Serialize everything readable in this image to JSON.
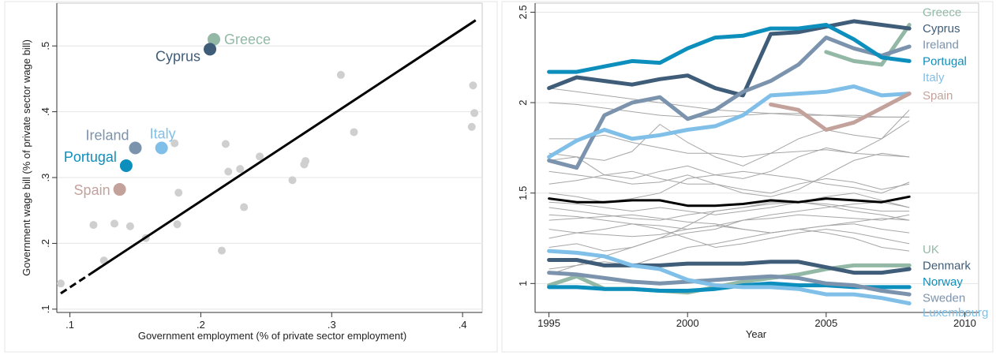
{
  "colors": {
    "grey_point": "#cfcfcf",
    "grey_line": "#a6a6a6",
    "black": "#000000",
    "greece": "#93b9a6",
    "cyprus": "#3f5d78",
    "ireland": "#7b93ad",
    "italy": "#7fbfe8",
    "portugal": "#0c8fbd",
    "spain": "#c4a29c",
    "uk": "#93b9a6",
    "denmark": "#3f5d78",
    "norway": "#0c8fbd",
    "sweden": "#7b93ad",
    "luxembourg": "#7fbfe8"
  },
  "chart_data": [
    {
      "type": "scatter",
      "xlabel": "Government employment (% of private sector employment)",
      "ylabel": "Government wage bill (% of private sector wage bill)",
      "xlim": [
        0.09,
        0.415
      ],
      "ylim": [
        0.095,
        0.565
      ],
      "xticks": [
        0.1,
        0.2,
        0.3,
        0.4
      ],
      "yticks": [
        0.1,
        0.2,
        0.3,
        0.4,
        0.5
      ],
      "xtick_labels": [
        ".1",
        ".2",
        ".3",
        ".4"
      ],
      "ytick_labels": [
        ".1",
        ".2",
        ".3",
        ".4",
        ".5"
      ],
      "grid": "horizontal",
      "background_points": [
        {
          "x": 0.093,
          "y": 0.139
        },
        {
          "x": 0.118,
          "y": 0.228
        },
        {
          "x": 0.126,
          "y": 0.174
        },
        {
          "x": 0.134,
          "y": 0.23
        },
        {
          "x": 0.146,
          "y": 0.226
        },
        {
          "x": 0.158,
          "y": 0.208
        },
        {
          "x": 0.18,
          "y": 0.352
        },
        {
          "x": 0.182,
          "y": 0.229
        },
        {
          "x": 0.183,
          "y": 0.277
        },
        {
          "x": 0.216,
          "y": 0.189
        },
        {
          "x": 0.219,
          "y": 0.351
        },
        {
          "x": 0.221,
          "y": 0.309
        },
        {
          "x": 0.23,
          "y": 0.313
        },
        {
          "x": 0.233,
          "y": 0.255
        },
        {
          "x": 0.245,
          "y": 0.332
        },
        {
          "x": 0.27,
          "y": 0.296
        },
        {
          "x": 0.279,
          "y": 0.32
        },
        {
          "x": 0.28,
          "y": 0.325
        },
        {
          "x": 0.307,
          "y": 0.456
        },
        {
          "x": 0.317,
          "y": 0.369
        },
        {
          "x": 0.407,
          "y": 0.377
        },
        {
          "x": 0.408,
          "y": 0.44
        },
        {
          "x": 0.409,
          "y": 0.398
        }
      ],
      "labeled_points": [
        {
          "name": "Greece",
          "x": 0.21,
          "y": 0.51,
          "color_key": "greece"
        },
        {
          "name": "Cyprus",
          "x": 0.207,
          "y": 0.495,
          "color_key": "cyprus"
        },
        {
          "name": "Ireland",
          "x": 0.15,
          "y": 0.345,
          "color_key": "ireland"
        },
        {
          "name": "Italy",
          "x": 0.17,
          "y": 0.345,
          "color_key": "italy"
        },
        {
          "name": "Portugal",
          "x": 0.143,
          "y": 0.318,
          "color_key": "portugal"
        },
        {
          "name": "Spain",
          "x": 0.138,
          "y": 0.282,
          "color_key": "spain"
        }
      ],
      "fit_line": {
        "x0": 0.093,
        "y0": 0.124,
        "x_solid_start": 0.116,
        "x1": 0.41,
        "y1": 0.539
      }
    },
    {
      "type": "line",
      "xlabel": "Year",
      "ylabel": "",
      "xlim": [
        1994.5,
        2010.5
      ],
      "ylim": [
        0.84,
        2.55
      ],
      "xticks": [
        1995,
        2000,
        2005,
        2010
      ],
      "xtick_labels": [
        "1995",
        "2000",
        "2005",
        "2010"
      ],
      "yticks": [
        1,
        1.5,
        2,
        2.5
      ],
      "ytick_labels": [
        "1",
        "1.5",
        "2",
        "2.5"
      ],
      "grid": "horizontal",
      "background_series": [
        [
          2.08,
          2.06,
          2.04,
          2.02,
          2.0,
          1.98,
          1.96,
          1.95,
          1.94,
          1.93,
          1.93,
          1.93,
          1.92,
          1.92
        ],
        [
          2.0,
          1.99,
          1.97,
          1.95,
          1.93,
          1.92,
          1.92,
          1.93,
          1.94,
          1.94,
          1.93,
          1.92,
          1.92,
          1.92
        ],
        [
          1.8,
          1.8,
          1.82,
          1.78,
          1.75,
          1.72,
          1.72,
          1.7,
          1.72,
          1.73,
          1.74,
          1.72,
          1.71,
          1.7
        ],
        [
          1.72,
          1.7,
          1.68,
          1.73,
          1.88,
          1.78,
          1.7,
          1.65,
          1.72,
          1.8,
          1.85,
          1.82,
          1.8,
          1.96
        ],
        [
          1.68,
          1.7,
          1.6,
          1.58,
          1.62,
          1.65,
          1.6,
          1.58,
          1.62,
          1.7,
          1.75,
          1.72,
          1.8,
          1.9
        ],
        [
          1.62,
          1.6,
          1.58,
          1.55,
          1.56,
          1.6,
          1.55,
          1.5,
          1.48,
          1.52,
          1.6,
          1.68,
          1.72,
          1.7
        ],
        [
          1.55,
          1.57,
          1.6,
          1.62,
          1.58,
          1.55,
          1.55,
          1.52,
          1.5,
          1.55,
          1.58,
          1.56,
          1.52,
          1.55
        ],
        [
          1.5,
          1.48,
          1.45,
          1.47,
          1.5,
          1.58,
          1.6,
          1.62,
          1.6,
          1.58,
          1.55,
          1.53,
          1.5,
          1.56
        ],
        [
          1.45,
          1.44,
          1.42,
          1.4,
          1.42,
          1.4,
          1.38,
          1.4,
          1.42,
          1.45,
          1.48,
          1.5,
          1.46,
          1.42
        ],
        [
          1.42,
          1.4,
          1.38,
          1.36,
          1.35,
          1.38,
          1.4,
          1.42,
          1.44,
          1.45,
          1.44,
          1.42,
          1.4,
          1.4
        ],
        [
          1.38,
          1.37,
          1.35,
          1.33,
          1.32,
          1.3,
          1.32,
          1.35,
          1.36,
          1.38,
          1.37,
          1.36,
          1.35,
          1.38
        ],
        [
          1.35,
          1.36,
          1.37,
          1.38,
          1.36,
          1.34,
          1.33,
          1.3,
          1.28,
          1.3,
          1.32,
          1.34,
          1.36,
          1.35
        ],
        [
          1.3,
          1.28,
          1.27,
          1.26,
          1.27,
          1.3,
          1.32,
          1.3,
          1.28,
          1.3,
          1.32,
          1.33,
          1.3,
          1.28
        ],
        [
          1.25,
          1.28,
          1.3,
          1.33,
          1.3,
          1.25,
          1.2,
          1.22,
          1.25,
          1.28,
          1.3,
          1.28,
          1.25,
          1.22
        ],
        [
          1.2,
          1.22,
          1.18,
          1.2,
          1.25,
          1.32,
          1.4,
          1.42,
          1.45,
          1.45,
          1.43,
          1.4,
          1.38,
          1.35
        ],
        [
          1.05,
          1.1,
          1.15,
          1.2,
          1.25,
          1.28,
          1.3,
          1.35,
          1.38,
          1.4,
          1.42,
          1.44,
          1.45,
          1.42
        ],
        [
          1.08,
          1.1,
          1.12,
          1.1,
          1.15,
          1.2,
          1.22,
          1.25,
          1.28,
          1.3,
          1.28,
          1.25,
          1.2,
          1.18
        ]
      ],
      "series": [
        {
          "name": "Greece",
          "color_key": "greece",
          "x": [
            2005,
            2006,
            2007,
            2008
          ],
          "values": [
            2.28,
            2.23,
            2.21,
            2.43
          ]
        },
        {
          "name": "Cyprus",
          "color_key": "cyprus",
          "x": [
            1995,
            1996,
            1997,
            1998,
            1999,
            2000,
            2001,
            2002,
            2003,
            2004,
            2005,
            2006,
            2007,
            2008
          ],
          "values": [
            2.08,
            2.14,
            2.12,
            2.1,
            2.13,
            2.15,
            2.08,
            2.04,
            2.38,
            2.39,
            2.42,
            2.45,
            2.43,
            2.41
          ]
        },
        {
          "name": "Ireland",
          "color_key": "ireland",
          "x": [
            1995,
            1996,
            1997,
            1998,
            1999,
            2000,
            2001,
            2002,
            2003,
            2004,
            2005,
            2006,
            2007,
            2008
          ],
          "values": [
            1.68,
            1.64,
            1.93,
            2.0,
            2.03,
            1.91,
            1.96,
            2.06,
            2.12,
            2.21,
            2.36,
            2.3,
            2.26,
            2.31
          ]
        },
        {
          "name": "Portugal",
          "color_key": "portugal",
          "x": [
            1995,
            1996,
            1997,
            1998,
            1999,
            2000,
            2001,
            2002,
            2003,
            2004,
            2005,
            2006,
            2007,
            2008
          ],
          "values": [
            2.17,
            2.17,
            2.2,
            2.23,
            2.22,
            2.3,
            2.36,
            2.37,
            2.41,
            2.41,
            2.43,
            2.35,
            2.25,
            2.23
          ]
        },
        {
          "name": "Italy",
          "color_key": "italy",
          "x": [
            1995,
            1996,
            1997,
            1998,
            1999,
            2000,
            2001,
            2002,
            2003,
            2004,
            2005,
            2006,
            2007,
            2008
          ],
          "values": [
            1.7,
            1.79,
            1.85,
            1.8,
            1.82,
            1.85,
            1.87,
            1.93,
            2.04,
            2.05,
            2.06,
            2.09,
            2.04,
            2.05
          ]
        },
        {
          "name": "Spain",
          "color_key": "spain",
          "x": [
            2003,
            2004,
            2005,
            2006,
            2007,
            2008
          ],
          "values": [
            1.99,
            1.96,
            1.85,
            1.89,
            1.97,
            2.05
          ]
        },
        {
          "name": "",
          "color_key": "black",
          "x": [
            1995,
            1996,
            1997,
            1998,
            1999,
            2000,
            2001,
            2002,
            2003,
            2004,
            2005,
            2006,
            2007,
            2008
          ],
          "values": [
            1.47,
            1.45,
            1.45,
            1.46,
            1.46,
            1.43,
            1.43,
            1.44,
            1.46,
            1.45,
            1.47,
            1.46,
            1.45,
            1.48
          ]
        },
        {
          "name": "UK",
          "color_key": "uk",
          "x": [
            1995,
            1996,
            1997,
            1998,
            1999,
            2000,
            2001,
            2002,
            2003,
            2004,
            2005,
            2006,
            2007,
            2008
          ],
          "values": [
            0.99,
            1.04,
            0.97,
            0.97,
            0.96,
            0.95,
            0.98,
            1.01,
            1.03,
            1.05,
            1.08,
            1.1,
            1.1,
            1.1
          ]
        },
        {
          "name": "Denmark",
          "color_key": "denmark",
          "x": [
            1995,
            1996,
            1997,
            1998,
            1999,
            2000,
            2001,
            2002,
            2003,
            2004,
            2005,
            2006,
            2007,
            2008
          ],
          "values": [
            1.13,
            1.13,
            1.1,
            1.1,
            1.1,
            1.11,
            1.11,
            1.11,
            1.12,
            1.12,
            1.09,
            1.06,
            1.06,
            1.08
          ]
        },
        {
          "name": "Norway",
          "color_key": "norway",
          "x": [
            1995,
            1996,
            1997,
            1998,
            1999,
            2000,
            2001,
            2002,
            2003,
            2004,
            2005,
            2006,
            2007,
            2008
          ],
          "values": [
            0.98,
            0.98,
            0.97,
            0.97,
            0.96,
            0.96,
            0.97,
            0.99,
            1.0,
            0.99,
            0.99,
            0.98,
            0.98,
            0.98
          ]
        },
        {
          "name": "Sweden",
          "color_key": "sweden",
          "x": [
            1995,
            1996,
            1997,
            1998,
            1999,
            2000,
            2001,
            2002,
            2003,
            2004,
            2005,
            2006,
            2007,
            2008
          ],
          "values": [
            1.06,
            1.05,
            1.03,
            1.01,
            1.0,
            1.01,
            1.02,
            1.03,
            1.04,
            1.03,
            1.0,
            0.99,
            0.96,
            0.94
          ]
        },
        {
          "name": "Luxembourg",
          "color_key": "luxembourg",
          "x": [
            1995,
            1996,
            1997,
            1998,
            1999,
            2000,
            2001,
            2002,
            2003,
            2004,
            2005,
            2006,
            2007,
            2008
          ],
          "values": [
            1.18,
            1.17,
            1.15,
            1.1,
            1.08,
            1.02,
            0.99,
            0.98,
            0.98,
            0.97,
            0.94,
            0.94,
            0.92,
            0.89
          ]
        }
      ],
      "end_labels": [
        {
          "name": "Greece",
          "color_key": "greece",
          "y": 2.5
        },
        {
          "name": "Cyprus",
          "color_key": "cyprus",
          "y": 2.41
        },
        {
          "name": "Ireland",
          "color_key": "ireland",
          "y": 2.32
        },
        {
          "name": "Portugal",
          "color_key": "portugal",
          "y": 2.23
        },
        {
          "name": "Italy",
          "color_key": "italy",
          "y": 2.14
        },
        {
          "name": "Spain",
          "color_key": "spain",
          "y": 2.04
        },
        {
          "name": "UK",
          "color_key": "uk",
          "y": 1.19
        },
        {
          "name": "Denmark",
          "color_key": "denmark",
          "y": 1.1
        },
        {
          "name": "Norway",
          "color_key": "norway",
          "y": 1.01
        },
        {
          "name": "Sweden",
          "color_key": "sweden",
          "y": 0.92
        },
        {
          "name": "Luxembourg",
          "color_key": "luxembourg",
          "y": 0.84
        }
      ]
    }
  ]
}
